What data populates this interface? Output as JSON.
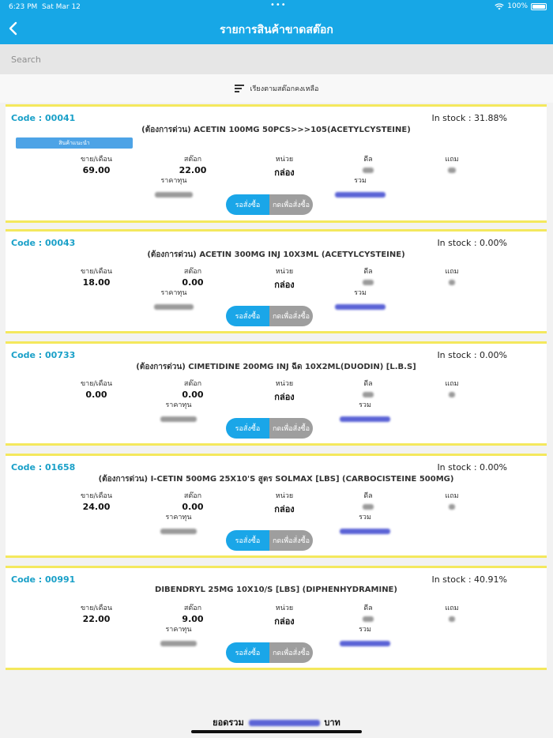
{
  "status": {
    "time": "6:23 PM",
    "date": "Sat Mar 12",
    "battery": "100%"
  },
  "header": {
    "title": "รายการสินค้าขาดสต๊อก"
  },
  "search": {
    "placeholder": "Search"
  },
  "sort": {
    "label": "เรียงตามสต๊อกคงเหลือ"
  },
  "labels": {
    "sales": "ขาย/เดือน",
    "stock": "สต๊อก",
    "unit": "หน่วย",
    "deal": "ดีล",
    "free": "แถม",
    "cost": "ราคาทุน",
    "total": "รวม",
    "wait_button": "รอสั่งซื้อ",
    "order_button": "กดเพื่อสั่งซื้อ"
  },
  "products": [
    {
      "code": "Code : 00041",
      "in_stock": "In stock : 31.88%",
      "name": "(ต้องการด่วน) ACETIN 100MG 50PCS>>>105(ACETYLCYSTEINE)",
      "badge": "สินค้าแนะนำ",
      "sales": "69.00",
      "stock": "22.00",
      "unit": "กล่อง"
    },
    {
      "code": "Code : 00043",
      "in_stock": "In stock : 0.00%",
      "name": "(ต้องการด่วน) ACETIN 300MG INJ 10X3ML (ACETYLCYSTEINE)",
      "badge": "",
      "sales": "18.00",
      "stock": "0.00",
      "unit": "กล่อง"
    },
    {
      "code": "Code : 00733",
      "in_stock": "In stock : 0.00%",
      "name": "(ต้องการด่วน) CIMETIDINE 200MG INJ ฉีด 10X2ML(DUODIN) [L.B.S]",
      "badge": "",
      "sales": "0.00",
      "stock": "0.00",
      "unit": "กล่อง"
    },
    {
      "code": "Code : 01658",
      "in_stock": "In stock : 0.00%",
      "name": "(ต้องการด่วน) I-CETIN  500MG 25X10'S สูตร SOLMAX [LBS] (CARBOCISTEINE 500MG)",
      "badge": "",
      "sales": "24.00",
      "stock": "0.00",
      "unit": "กล่อง"
    },
    {
      "code": "Code : 00991",
      "in_stock": "In stock : 40.91%",
      "name": "DIBENDRYL 25MG 10X10/S [LBS] (DIPHENHYDRAMINE)",
      "badge": "",
      "sales": "22.00",
      "stock": "9.00",
      "unit": "กล่อง"
    }
  ],
  "footer": {
    "prefix": "ยอดรวม",
    "suffix": "บาท"
  },
  "colors": {
    "primary": "#17a7e6",
    "card_border": "#f4e85d",
    "code": "#1aa0c8",
    "order_button": "#9e9e9e"
  }
}
